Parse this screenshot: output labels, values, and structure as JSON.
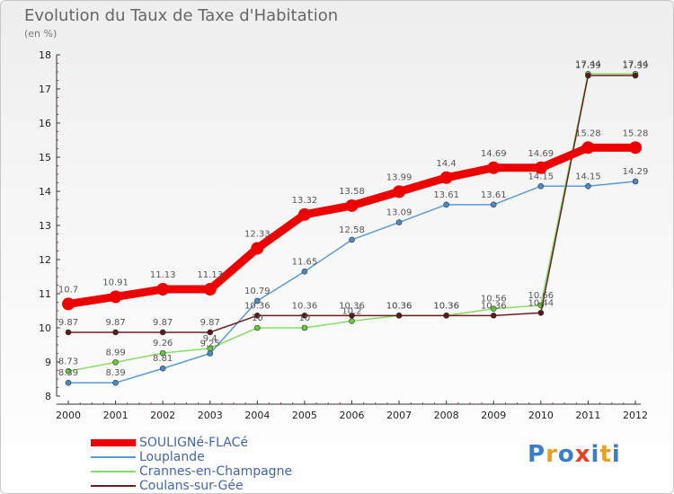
{
  "title": "Evolution du Taux de Taxe d'Habitation",
  "subtitle": "(en %)",
  "logo": {
    "letters": [
      "P",
      "r",
      "o",
      "x",
      "i",
      "t",
      "i"
    ],
    "colors": [
      "#3a7fc8",
      "#e8a020",
      "#3a7fc8",
      "#e84020",
      "#3a7fc8",
      "#e8a020",
      "#3a7fc8"
    ]
  },
  "chart_data": {
    "type": "line",
    "title": "Evolution du Taux de Taxe d'Habitation",
    "ylabel": "(en %)",
    "x": [
      "2000",
      "2001",
      "2002",
      "2003",
      "2004",
      "2005",
      "2006",
      "2007",
      "2008",
      "2009",
      "2010",
      "2011",
      "2012"
    ],
    "ylim": [
      8,
      18
    ],
    "yticks": [
      8,
      9,
      10,
      11,
      12,
      13,
      14,
      15,
      16,
      17,
      18
    ],
    "grid": false,
    "legend_position": "bottom-left",
    "series": [
      {
        "name": "SOULIGNé-FLACé",
        "color": "#ee0000",
        "emphasis": true,
        "values": [
          10.7,
          10.91,
          11.13,
          11.13,
          12.33,
          13.32,
          13.58,
          13.99,
          14.4,
          14.69,
          14.69,
          15.28,
          15.28
        ],
        "labels": [
          "10.7",
          "10.91",
          "11.13",
          "11.13",
          "12.33",
          "13.32",
          "13.58",
          "13.99",
          "14.4",
          "14.69",
          "14.69",
          "15.28",
          "15.28"
        ]
      },
      {
        "name": "Louplande",
        "color": "#5b9bd5",
        "marker": "#4a8ac8",
        "values": [
          8.39,
          8.39,
          8.81,
          9.25,
          10.79,
          11.65,
          12.58,
          13.09,
          13.61,
          13.61,
          14.15,
          14.15,
          14.29
        ],
        "labels": [
          "8.39",
          "8.39",
          "8.81",
          "9.25",
          "10.79",
          "11.65",
          "12.58",
          "13.09",
          "13.61",
          "13.61",
          "14.15",
          "14.15",
          "14.29"
        ]
      },
      {
        "name": "Crannes-en-Champagne",
        "color": "#88dd66",
        "marker": "#66cc33",
        "values": [
          8.73,
          8.99,
          9.26,
          9.4,
          10.0,
          10.0,
          10.2,
          10.36,
          10.36,
          10.56,
          10.66,
          17.44,
          17.44
        ],
        "labels": [
          "8.73",
          "8.99",
          "9.26",
          "9.4",
          "10",
          "10",
          "10.2",
          "10.36",
          "10.36",
          "10.56",
          "10.66",
          "17.44",
          "17.44"
        ]
      },
      {
        "name": "Coulans-sur-Gée",
        "color": "#6b2020",
        "marker": "#5a1a1a",
        "values": [
          9.87,
          9.87,
          9.87,
          9.87,
          10.36,
          10.36,
          10.36,
          10.36,
          10.36,
          10.36,
          10.44,
          17.39,
          17.39
        ],
        "labels": [
          "9.87",
          "9.87",
          "9.87",
          "9.87",
          "10.36",
          "10.36",
          "10.36",
          "10.36",
          "10.36",
          "10.36",
          "10.44",
          "17.39",
          "17.39"
        ]
      }
    ]
  }
}
